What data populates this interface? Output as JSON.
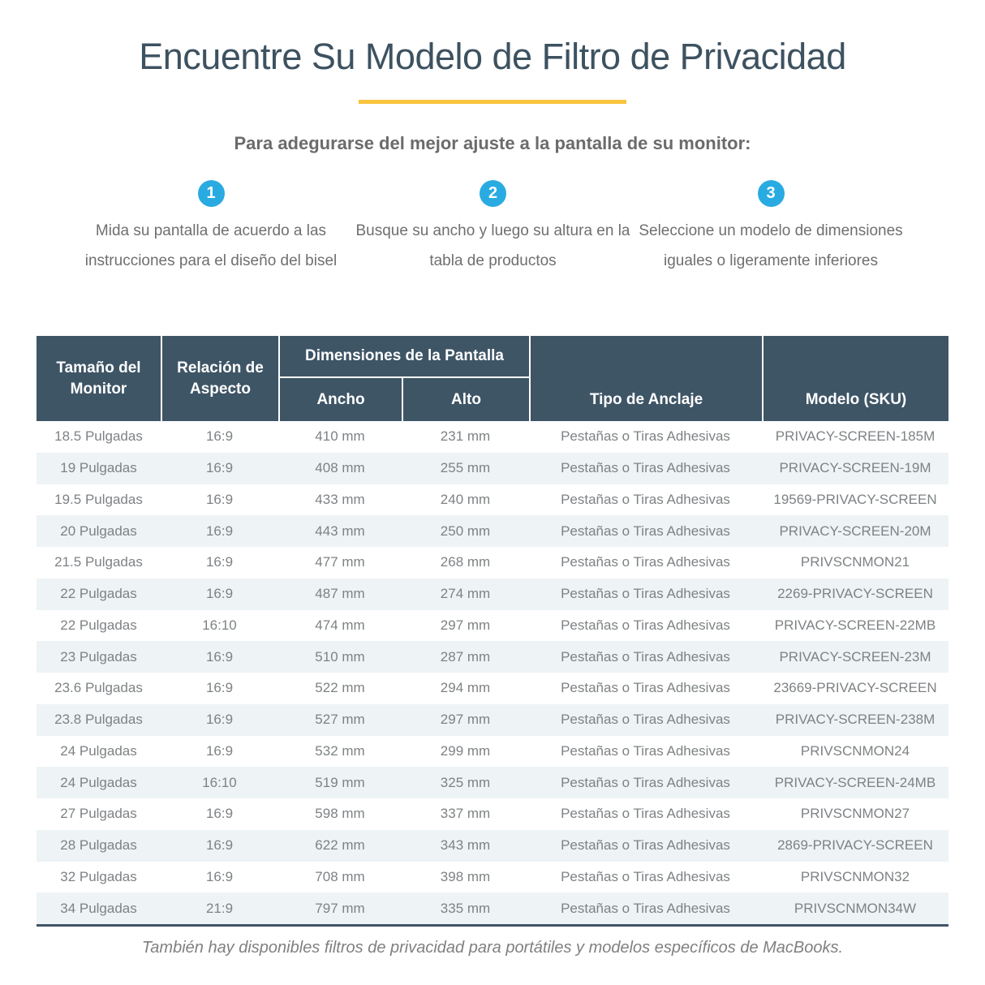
{
  "header": {
    "title": "Encuentre Su Modelo de Filtro de Privacidad",
    "subtitle": "Para adegurarse del mejor ajuste a la pantalla de su monitor:"
  },
  "colors": {
    "accent_yellow": "#f9c33c",
    "step_circle_blue": "#29abe2",
    "table_header_bg": "#3e5566",
    "row_alt_bg": "#eef3f6",
    "title_text": "#3d5260"
  },
  "steps": [
    {
      "number": "1",
      "text": "Mida su pantalla de acuerdo a las instrucciones para el diseño del bisel"
    },
    {
      "number": "2",
      "text": "Busque su ancho y luego su altura en la tabla de productos"
    },
    {
      "number": "3",
      "text": "Seleccione un modelo de dimensiones iguales o ligeramente inferiores"
    }
  ],
  "table": {
    "headers": {
      "monitor": "Tamaño del Monitor",
      "aspect": "Relación de Aspecto",
      "dimensions_group": "Dimensiones de la Pantalla",
      "width": "Ancho",
      "height": "Alto",
      "mount": "Tipo de Anclaje",
      "sku": "Modelo (SKU)"
    },
    "rows": [
      [
        "18.5 Pulgadas",
        "16:9",
        "410 mm",
        "231 mm",
        "Pestañas o Tiras Adhesivas",
        "PRIVACY-SCREEN-185M"
      ],
      [
        "19 Pulgadas",
        "16:9",
        "408 mm",
        "255 mm",
        "Pestañas o Tiras Adhesivas",
        "PRIVACY-SCREEN-19M"
      ],
      [
        "19.5 Pulgadas",
        "16:9",
        "433 mm",
        "240 mm",
        "Pestañas o Tiras Adhesivas",
        "19569-PRIVACY-SCREEN"
      ],
      [
        "20 Pulgadas",
        "16:9",
        "443 mm",
        "250 mm",
        "Pestañas o Tiras Adhesivas",
        "PRIVACY-SCREEN-20M"
      ],
      [
        "21.5 Pulgadas",
        "16:9",
        "477 mm",
        "268 mm",
        "Pestañas o Tiras Adhesivas",
        "PRIVSCNMON21"
      ],
      [
        "22 Pulgadas",
        "16:9",
        "487 mm",
        "274 mm",
        "Pestañas o Tiras Adhesivas",
        "2269-PRIVACY-SCREEN"
      ],
      [
        "22 Pulgadas",
        "16:10",
        "474 mm",
        "297 mm",
        "Pestañas o Tiras Adhesivas",
        "PRIVACY-SCREEN-22MB"
      ],
      [
        "23 Pulgadas",
        "16:9",
        "510 mm",
        "287 mm",
        "Pestañas o Tiras Adhesivas",
        "PRIVACY-SCREEN-23M"
      ],
      [
        "23.6 Pulgadas",
        "16:9",
        "522 mm",
        "294 mm",
        "Pestañas o Tiras Adhesivas",
        "23669-PRIVACY-SCREEN"
      ],
      [
        "23.8 Pulgadas",
        "16:9",
        "527 mm",
        "297 mm",
        "Pestañas o Tiras Adhesivas",
        "PRIVACY-SCREEN-238M"
      ],
      [
        "24 Pulgadas",
        "16:9",
        "532 mm",
        "299 mm",
        "Pestañas o Tiras Adhesivas",
        "PRIVSCNMON24"
      ],
      [
        "24 Pulgadas",
        "16:10",
        "519 mm",
        "325 mm",
        "Pestañas o Tiras Adhesivas",
        "PRIVACY-SCREEN-24MB"
      ],
      [
        "27 Pulgadas",
        "16:9",
        "598 mm",
        "337 mm",
        "Pestañas o Tiras Adhesivas",
        "PRIVSCNMON27"
      ],
      [
        "28 Pulgadas",
        "16:9",
        "622 mm",
        "343 mm",
        "Pestañas o Tiras Adhesivas",
        "2869-PRIVACY-SCREEN"
      ],
      [
        "32 Pulgadas",
        "16:9",
        "708 mm",
        "398 mm",
        "Pestañas o Tiras Adhesivas",
        "PRIVSCNMON32"
      ],
      [
        "34 Pulgadas",
        "21:9",
        "797 mm",
        "335 mm",
        "Pestañas o Tiras Adhesivas",
        "PRIVSCNMON34W"
      ]
    ]
  },
  "footer": {
    "note": "También hay disponibles filtros de privacidad para portátiles y modelos específicos de MacBooks."
  }
}
